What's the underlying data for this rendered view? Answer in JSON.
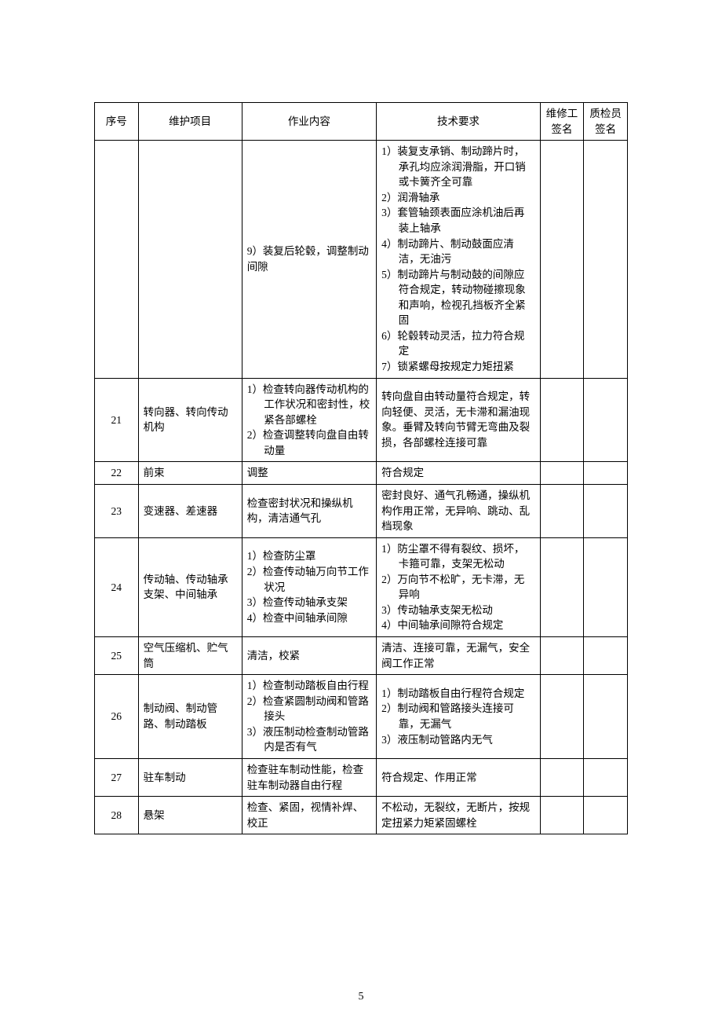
{
  "headers": {
    "idx": "序号",
    "item": "维护项目",
    "work": "作业内容",
    "req": "技术要求",
    "sig1": "维修工签名",
    "sig2": "质检员签名"
  },
  "rows": [
    {
      "idx": "",
      "item": "",
      "work": "9）装复后轮毂，调整制动间隙",
      "req_lines": [
        "1）装复支承销、制动蹄片时，承孔均应涂润滑脂，开口销或卡簧齐全可靠",
        "2）润滑轴承",
        "3）套管轴颈表面应涂机油后再装上轴承",
        "4）制动蹄片、制动鼓面应清洁，无油污",
        "5）制动蹄片与制动鼓的间隙应符合规定，转动物碰擦现象和声响，检视孔挡板齐全紧固",
        "6）轮毂转动灵活，拉力符合规定",
        "7）锁紧螺母按规定力矩扭紧"
      ]
    },
    {
      "idx": "21",
      "item": "转向器、转向传动机构",
      "work_lines": [
        "1）检查转向器传动机构的工作状况和密封性，校紧各部螺栓",
        "2）检查调整转向盘自由转动量"
      ],
      "req": "转向盘自由转动量符合规定，转向轻便、灵活，无卡滞和漏油现象。垂臂及转向节臂无弯曲及裂损，各部螺栓连接可靠"
    },
    {
      "idx": "22",
      "item": "前束",
      "work": "调整",
      "req": "符合规定"
    },
    {
      "idx": "23",
      "item": "变速器、差速器",
      "work": "检查密封状况和操纵机构，清洁通气孔",
      "req": "密封良好、通气孔畅通，操纵机构作用正常，无异响、跳动、乱档现象"
    },
    {
      "idx": "24",
      "item": "传动轴、传动轴承支架、中间轴承",
      "work_lines": [
        "1）检查防尘罩",
        "2）检查传动轴万向节工作状况",
        "3）检查传动轴承支架",
        "4）检查中间轴承间隙"
      ],
      "req_lines": [
        "1）防尘罩不得有裂纹、损坏，卡箍可靠，支架无松动",
        "2）万向节不松旷，无卡滞，无异响",
        "3）传动轴承支架无松动",
        "4）中间轴承间隙符合规定"
      ]
    },
    {
      "idx": "25",
      "item": "空气压缩机、贮气筒",
      "work": "清洁，校紧",
      "req": "清洁、连接可靠，无漏气，安全阀工作正常"
    },
    {
      "idx": "26",
      "item": "制动阀、制动管路、制动踏板",
      "work_lines": [
        "1）检查制动踏板自由行程",
        "2）检查紧圆制动阀和管路接头",
        "3）液压制动检查制动管路内是否有气"
      ],
      "req_lines": [
        "1）制动踏板自由行程符合规定",
        "2）制动阀和管路接头连接可靠，无漏气",
        "3）液压制动管路内无气"
      ]
    },
    {
      "idx": "27",
      "item": "驻车制动",
      "work": "检查驻车制动性能，检查驻车制动器自由行程",
      "req": "符合规定、作用正常"
    },
    {
      "idx": "28",
      "item": "悬架",
      "work": "检查、紧固，视情补焊、校正",
      "req": "不松动，无裂纹，无断片，按规定扭紧力矩紧固螺栓"
    }
  ],
  "page_number": "5"
}
